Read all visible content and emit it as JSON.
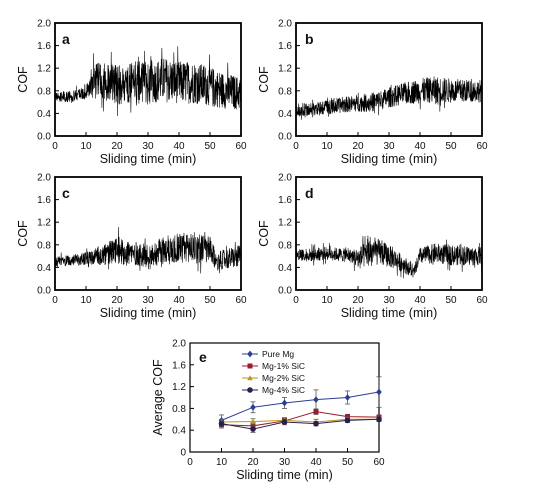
{
  "chart_data": [
    {
      "panel": "a",
      "type": "line",
      "xlabel": "Sliding time (min)",
      "ylabel": "COF",
      "xlim": [
        0,
        60
      ],
      "ylim": [
        0,
        2.0
      ],
      "xticks": [
        0,
        10,
        20,
        30,
        40,
        50,
        60
      ],
      "yticks": [
        "0.0",
        "0.4",
        "0.8",
        "1.2",
        "1.6",
        "2.0"
      ],
      "series": [
        {
          "x": [
            0,
            5,
            10,
            12,
            15,
            20,
            25,
            30,
            35,
            40,
            45,
            50,
            55,
            60
          ],
          "mean": [
            0.68,
            0.7,
            0.75,
            0.95,
            1.0,
            0.9,
            0.95,
            0.95,
            1.0,
            0.95,
            0.95,
            0.88,
            0.8,
            0.75
          ],
          "amp": [
            0.08,
            0.1,
            0.12,
            0.3,
            0.35,
            0.35,
            0.38,
            0.38,
            0.4,
            0.38,
            0.38,
            0.35,
            0.32,
            0.3
          ]
        }
      ]
    },
    {
      "panel": "b",
      "type": "line",
      "xlabel": "Sliding time (min)",
      "ylabel": "COF",
      "xlim": [
        0,
        60
      ],
      "ylim": [
        0,
        2.0
      ],
      "xticks": [
        0,
        10,
        20,
        30,
        40,
        50,
        60
      ],
      "yticks": [
        "0.0",
        "0.4",
        "0.8",
        "1.2",
        "1.6",
        "2.0"
      ],
      "series": [
        {
          "x": [
            0,
            5,
            10,
            15,
            20,
            25,
            30,
            35,
            40,
            45,
            50,
            55,
            60
          ],
          "mean": [
            0.45,
            0.48,
            0.5,
            0.55,
            0.58,
            0.6,
            0.68,
            0.75,
            0.8,
            0.82,
            0.8,
            0.8,
            0.8
          ],
          "amp": [
            0.12,
            0.12,
            0.13,
            0.14,
            0.15,
            0.17,
            0.18,
            0.2,
            0.22,
            0.24,
            0.22,
            0.2,
            0.2
          ]
        }
      ]
    },
    {
      "panel": "c",
      "type": "line",
      "xlabel": "Sliding time (min)",
      "ylabel": "COF",
      "xlim": [
        0,
        60
      ],
      "ylim": [
        0,
        2.0
      ],
      "xticks": [
        0,
        10,
        20,
        30,
        40,
        50,
        60
      ],
      "yticks": [
        "0.0",
        "0.4",
        "0.8",
        "1.2",
        "1.6",
        "2.0"
      ],
      "series": [
        {
          "x": [
            0,
            5,
            10,
            15,
            20,
            25,
            30,
            35,
            40,
            45,
            50,
            52,
            55,
            60
          ],
          "mean": [
            0.5,
            0.52,
            0.55,
            0.6,
            0.7,
            0.65,
            0.6,
            0.7,
            0.75,
            0.75,
            0.7,
            0.5,
            0.55,
            0.6
          ],
          "amp": [
            0.1,
            0.1,
            0.12,
            0.18,
            0.25,
            0.22,
            0.2,
            0.25,
            0.28,
            0.28,
            0.25,
            0.15,
            0.18,
            0.2
          ]
        }
      ]
    },
    {
      "panel": "d",
      "type": "line",
      "xlabel": "Sliding time (min)",
      "ylabel": "COF",
      "xlim": [
        0,
        60
      ],
      "ylim": [
        0,
        2.0
      ],
      "xticks": [
        0,
        10,
        20,
        30,
        40,
        50,
        60
      ],
      "yticks": [
        "0.0",
        "0.4",
        "0.8",
        "1.2",
        "1.6",
        "2.0"
      ],
      "series": [
        {
          "x": [
            0,
            5,
            10,
            15,
            18,
            20,
            25,
            30,
            35,
            38,
            40,
            45,
            50,
            55,
            60
          ],
          "mean": [
            0.62,
            0.62,
            0.65,
            0.62,
            0.6,
            0.55,
            0.7,
            0.6,
            0.45,
            0.3,
            0.6,
            0.65,
            0.62,
            0.6,
            0.6
          ],
          "amp": [
            0.1,
            0.12,
            0.12,
            0.12,
            0.12,
            0.2,
            0.25,
            0.2,
            0.15,
            0.1,
            0.15,
            0.18,
            0.18,
            0.17,
            0.17
          ]
        }
      ]
    },
    {
      "panel": "e",
      "type": "line",
      "xlabel": "Sliding time (min)",
      "ylabel": "Average COF",
      "xlim": [
        0,
        60
      ],
      "ylim": [
        0,
        2.0
      ],
      "xticks": [
        0,
        10,
        20,
        30,
        40,
        50,
        60
      ],
      "yticks": [
        "0",
        "0.4",
        "0.8",
        "1.2",
        "1.6",
        "2.0"
      ],
      "x": [
        10,
        20,
        30,
        40,
        50,
        60
      ],
      "series": [
        {
          "name": "Pure Mg",
          "values": [
            0.58,
            0.82,
            0.9,
            0.96,
            1.0,
            1.1
          ],
          "errors": [
            0.1,
            0.1,
            0.1,
            0.18,
            0.12,
            0.28
          ],
          "color": "#2c3e95",
          "marker": "diamond"
        },
        {
          "name": "Mg-1% SiC",
          "values": [
            0.5,
            0.48,
            0.57,
            0.74,
            0.65,
            0.64
          ],
          "errors": [
            0.06,
            0.06,
            0.05,
            0.05,
            0.04,
            0.04
          ],
          "color": "#9b1b30",
          "marker": "square"
        },
        {
          "name": "Mg-2% SiC",
          "values": [
            0.55,
            0.56,
            0.58,
            0.55,
            0.6,
            0.6
          ],
          "errors": [
            0.05,
            0.05,
            0.05,
            0.05,
            0.04,
            0.04
          ],
          "color": "#b89a1a",
          "marker": "triangle"
        },
        {
          "name": "Mg-4% SiC",
          "values": [
            0.52,
            0.42,
            0.55,
            0.52,
            0.58,
            0.6
          ],
          "errors": [
            0.05,
            0.06,
            0.05,
            0.04,
            0.04,
            0.04
          ],
          "color": "#2a1f4a",
          "marker": "circle"
        }
      ],
      "legend": "top-left"
    }
  ]
}
